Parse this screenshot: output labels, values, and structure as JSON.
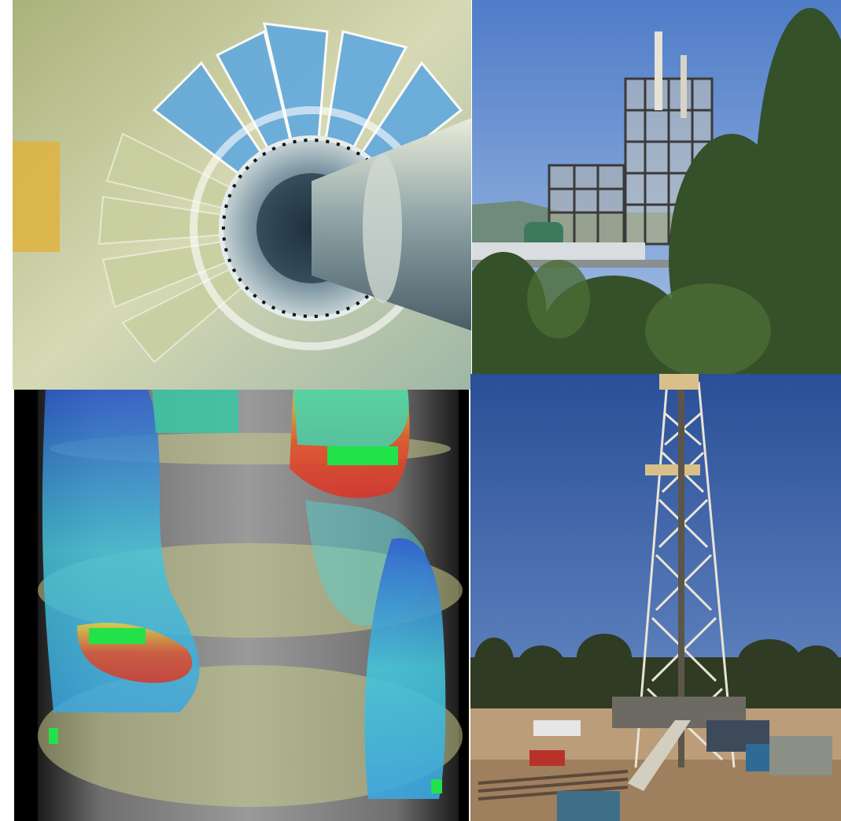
{
  "collage": {
    "tiles": [
      {
        "subject": "turbine-rotor",
        "colors": {
          "primary": "#5aa7d8",
          "secondary": "#c9cf9c"
        }
      },
      {
        "subject": "refinery-plant",
        "colors": {
          "sky": "#6e93d1",
          "trees": "#3c5a2a"
        }
      },
      {
        "subject": "cfd-simulation",
        "colors": {
          "plume": "#3fb6d8",
          "hot": "#d8352a",
          "disk": "#b5b97a"
        }
      },
      {
        "subject": "drilling-rig",
        "colors": {
          "sky": "#3d63a8",
          "ground": "#b89a78"
        }
      }
    ]
  }
}
